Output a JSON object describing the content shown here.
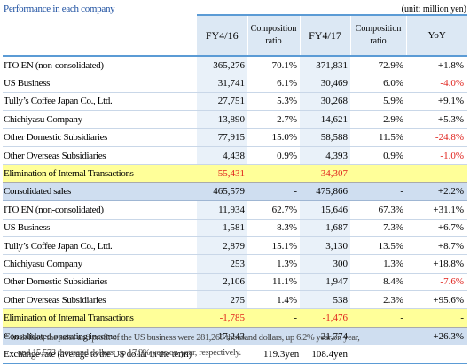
{
  "title": "Performance in each company",
  "unit": "(unit: million yen)",
  "headers": {
    "fy16": "FY4/16",
    "comp1": "Composition\nratio",
    "fy17": "FY4/17",
    "comp2": "Composition\nratio",
    "yoy": "YoY"
  },
  "sales_rows": [
    {
      "name": "ITO EN (non-consolidated)",
      "fy16": "365,276",
      "c16": "70.1%",
      "fy17": "371,831",
      "c17": "72.9%",
      "yoy": "+1.8%"
    },
    {
      "name": "US Business",
      "fy16": "31,741",
      "c16": "6.1%",
      "fy17": "30,469",
      "c17": "6.0%",
      "yoy": "-4.0%"
    },
    {
      "name": "Tully’s Coffee Japan Co., Ltd.",
      "fy16": "27,751",
      "c16": "5.3%",
      "fy17": "30,268",
      "c17": "5.9%",
      "yoy": "+9.1%"
    },
    {
      "name": "Chichiyasu Company",
      "fy16": "13,890",
      "c16": "2.7%",
      "fy17": "14,621",
      "c17": "2.9%",
      "yoy": "+5.3%"
    },
    {
      "name": "Other Domestic Subsidiaries",
      "fy16": "77,915",
      "c16": "15.0%",
      "fy17": "58,588",
      "c17": "11.5%",
      "yoy": "-24.8%"
    },
    {
      "name": "Other Overseas Subsidiaries",
      "fy16": "4,438",
      "c16": "0.9%",
      "fy17": "4,393",
      "c17": "0.9%",
      "yoy": "-1.0%"
    }
  ],
  "sales_elim": {
    "name": "Elimination of Internal Transactions",
    "fy16": "-55,431",
    "c16": "-",
    "fy17": "-34,307",
    "c17": "-",
    "yoy": "-"
  },
  "sales_total": {
    "name": "Consolidated sales",
    "fy16": "465,579",
    "c16": "-",
    "fy17": "475,866",
    "c17": "-",
    "yoy": "+2.2%"
  },
  "income_rows": [
    {
      "name": "ITO EN (non-consolidated)",
      "fy16": "11,934",
      "c16": "62.7%",
      "fy17": "15,646",
      "c17": "67.3%",
      "yoy": "+31.1%"
    },
    {
      "name": "US Business",
      "fy16": "1,581",
      "c16": "8.3%",
      "fy17": "1,687",
      "c17": "7.3%",
      "yoy": "+6.7%"
    },
    {
      "name": "Tully’s Coffee Japan Co., Ltd.",
      "fy16": "2,879",
      "c16": "15.1%",
      "fy17": "3,130",
      "c17": "13.5%",
      "yoy": "+8.7%"
    },
    {
      "name": "Chichiyasu Company",
      "fy16": "253",
      "c16": "1.3%",
      "fy17": "300",
      "c17": "1.3%",
      "yoy": "+18.8%"
    },
    {
      "name": "Other Domestic Subsidiaries",
      "fy16": "2,106",
      "c16": "11.1%",
      "fy17": "1,947",
      "c17": "8.4%",
      "yoy": "-7.6%"
    },
    {
      "name": "Other Overseas Subsidiaries",
      "fy16": "275",
      "c16": "1.4%",
      "fy17": "538",
      "c17": "2.3%",
      "yoy": "+95.6%"
    }
  ],
  "income_elim": {
    "name": "Elimination of Internal Transactions",
    "fy16": "-1,785",
    "c16": "-",
    "fy17": "-1,476",
    "c17": "-",
    "yoy": "-"
  },
  "income_total": {
    "name": "Consolidated operating income",
    "fy16": "17,243",
    "c16": "-",
    "fy17": "21,774",
    "c17": "-",
    "yoy": "+26.3%"
  },
  "fx_row": {
    "name": "Exchange rate (average to the US dollar in the term)",
    "fy16": "119.3yen",
    "fy17": "108.4yen"
  },
  "note": {
    "line1": "* In dollars, the sales and profit of the US business were 281,268 thousand dollars, up 6.2% year on year,",
    "line2": "and 15,573 thousand dollars, up 17.9% year-on-year, respectively."
  },
  "colors": {
    "header_blue": "#5b9bd5",
    "negative_red": "#e0221c",
    "elimination_yellow": "#ffff99",
    "total_blue": "#cfdef0",
    "title_blue": "#1c4fa0"
  }
}
